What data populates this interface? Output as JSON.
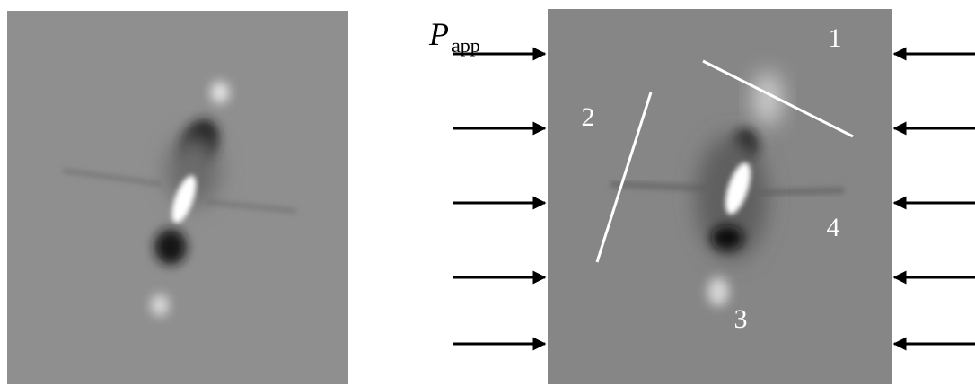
{
  "figure": {
    "load_label": {
      "symbol": "P",
      "subscript": "app"
    },
    "regions": [
      "1",
      "2",
      "3",
      "4"
    ]
  }
}
